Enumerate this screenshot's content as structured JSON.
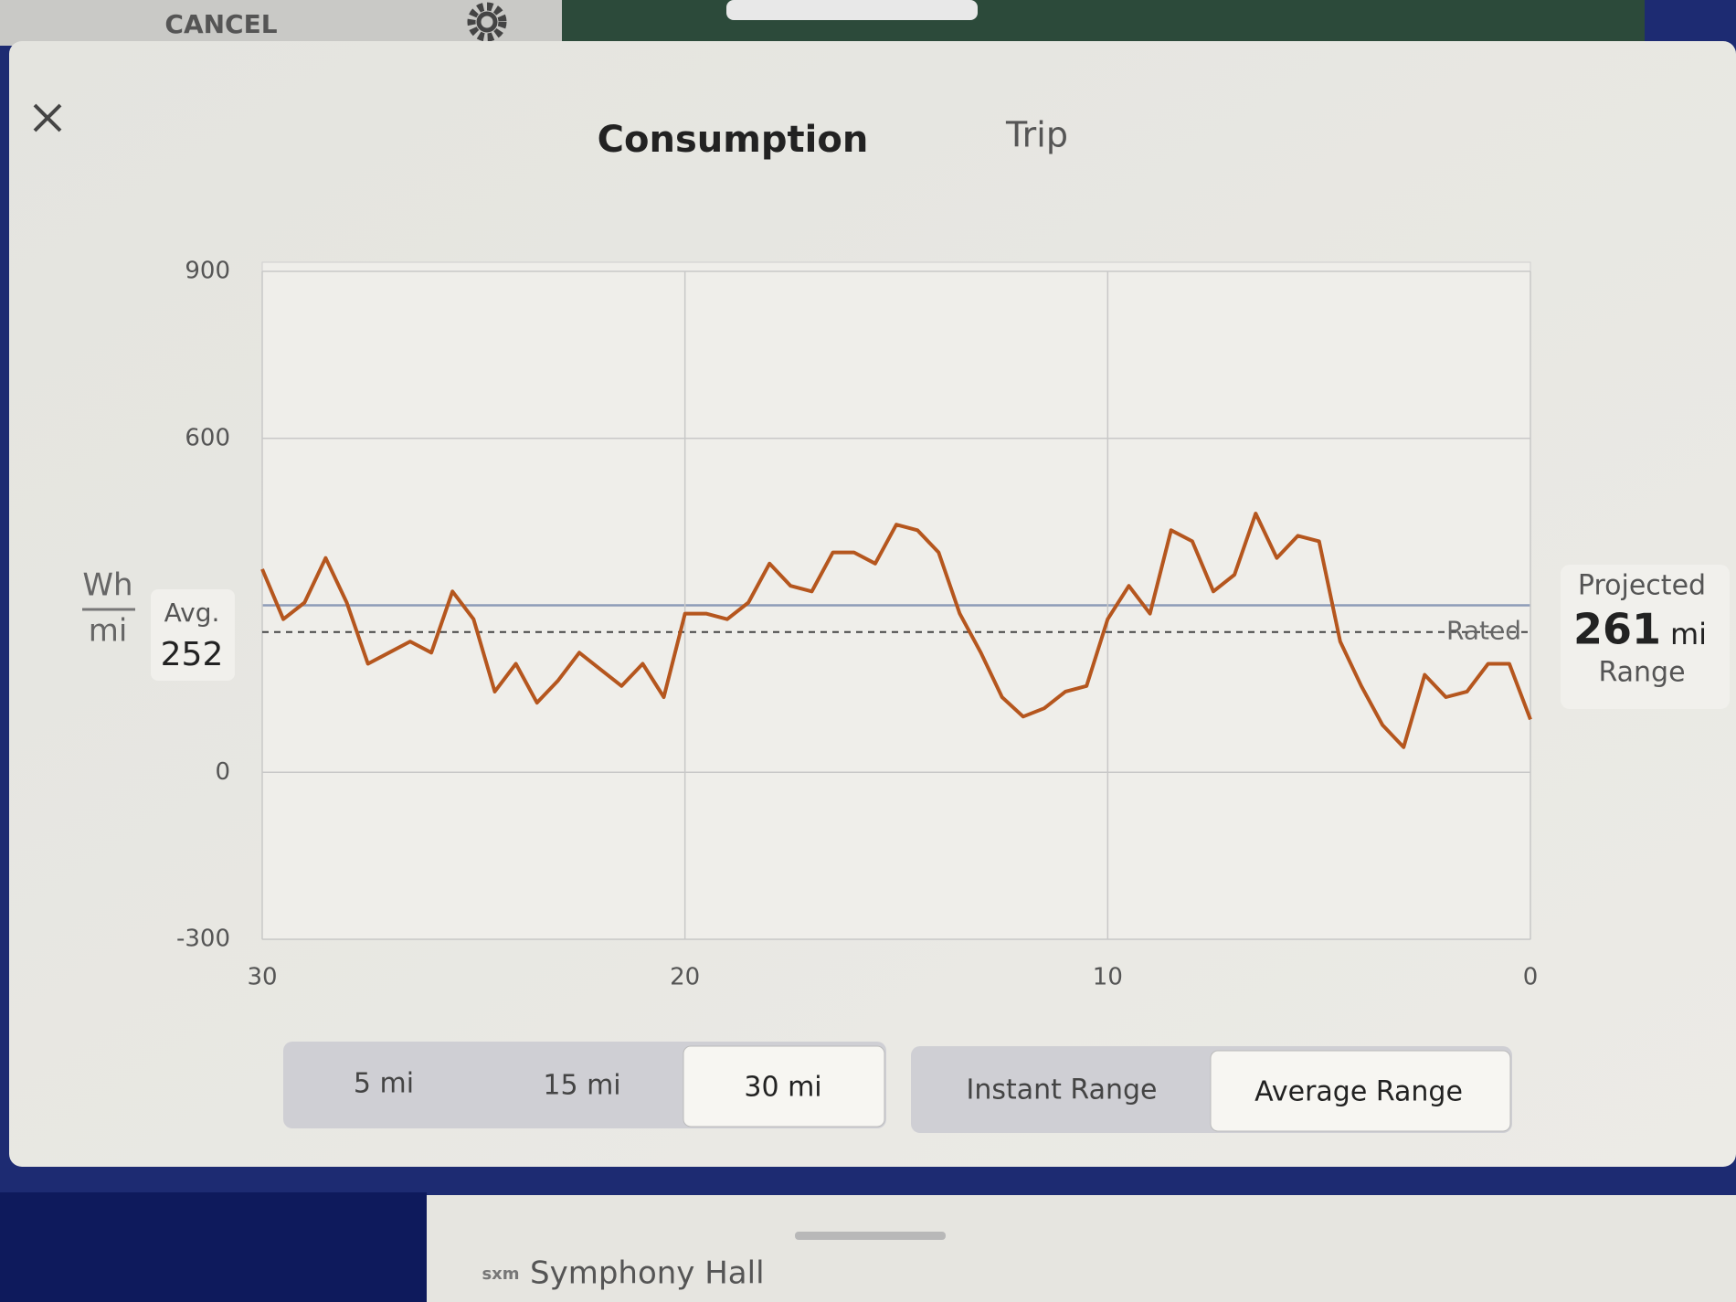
{
  "ui": {
    "cancel": "CANCEL",
    "tabs": [
      "Consumption",
      "Trip"
    ],
    "unit_top": "Wh",
    "unit_bottom": "mi",
    "avg_label": "Avg.",
    "avg_value": 252,
    "rated_label": "Rated",
    "projected_label": "Projected",
    "projected_value": 261,
    "projected_unit": "mi",
    "range_label": "Range",
    "ranges": [
      "5 mi",
      "15 mi",
      "30 mi"
    ],
    "modes": [
      "Instant Range",
      "Average Range"
    ],
    "media": "Symphony Hall"
  },
  "chart_data": {
    "type": "line",
    "x": [
      30,
      29.5,
      29,
      28.5,
      28,
      27.5,
      27,
      26.5,
      26,
      25.5,
      25,
      24.5,
      24,
      23.5,
      23,
      22.5,
      22,
      21.5,
      21,
      20.5,
      20,
      19.5,
      19,
      18.5,
      18,
      17.5,
      17,
      16.5,
      16,
      15.5,
      15,
      14.5,
      14,
      13.5,
      13,
      12.5,
      12,
      11.5,
      11,
      10.5,
      10,
      9.5,
      9,
      8.5,
      8,
      7.5,
      7,
      6.5,
      6,
      5.5,
      5,
      4.5,
      4,
      3.5,
      3,
      2.5,
      2,
      1.5,
      1,
      0.5,
      0
    ],
    "series": [
      {
        "color": "#b5561e",
        "values": [
          365,
          275,
          305,
          385,
          305,
          195,
          215,
          235,
          215,
          325,
          275,
          145,
          195,
          125,
          165,
          215,
          185,
          155,
          195,
          135,
          285,
          285,
          275,
          305,
          375,
          335,
          325,
          395,
          395,
          375,
          445,
          435,
          395,
          285,
          215,
          135,
          100,
          115,
          145,
          155,
          275,
          335,
          285,
          435,
          415,
          325,
          355,
          465,
          385,
          425,
          415,
          235,
          155,
          85,
          45,
          175,
          135,
          145,
          195,
          195,
          95
        ]
      }
    ],
    "xlim": [
      30,
      0
    ],
    "xticks": [
      30,
      20,
      10,
      0
    ],
    "ylim": [
      -300,
      900
    ],
    "yticks": [
      -300,
      0,
      600,
      900
    ],
    "grid_lines": [
      300
    ],
    "grid": true
  }
}
